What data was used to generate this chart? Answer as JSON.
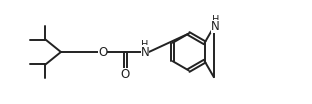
{
  "background_color": "#ffffff",
  "line_color": "#222222",
  "line_width": 1.4,
  "font_size": 8.5,
  "fig_width": 3.12,
  "fig_height": 1.04,
  "dpi": 100,
  "xlim": [
    0,
    9.5
  ],
  "ylim": [
    0.0,
    3.5
  ]
}
